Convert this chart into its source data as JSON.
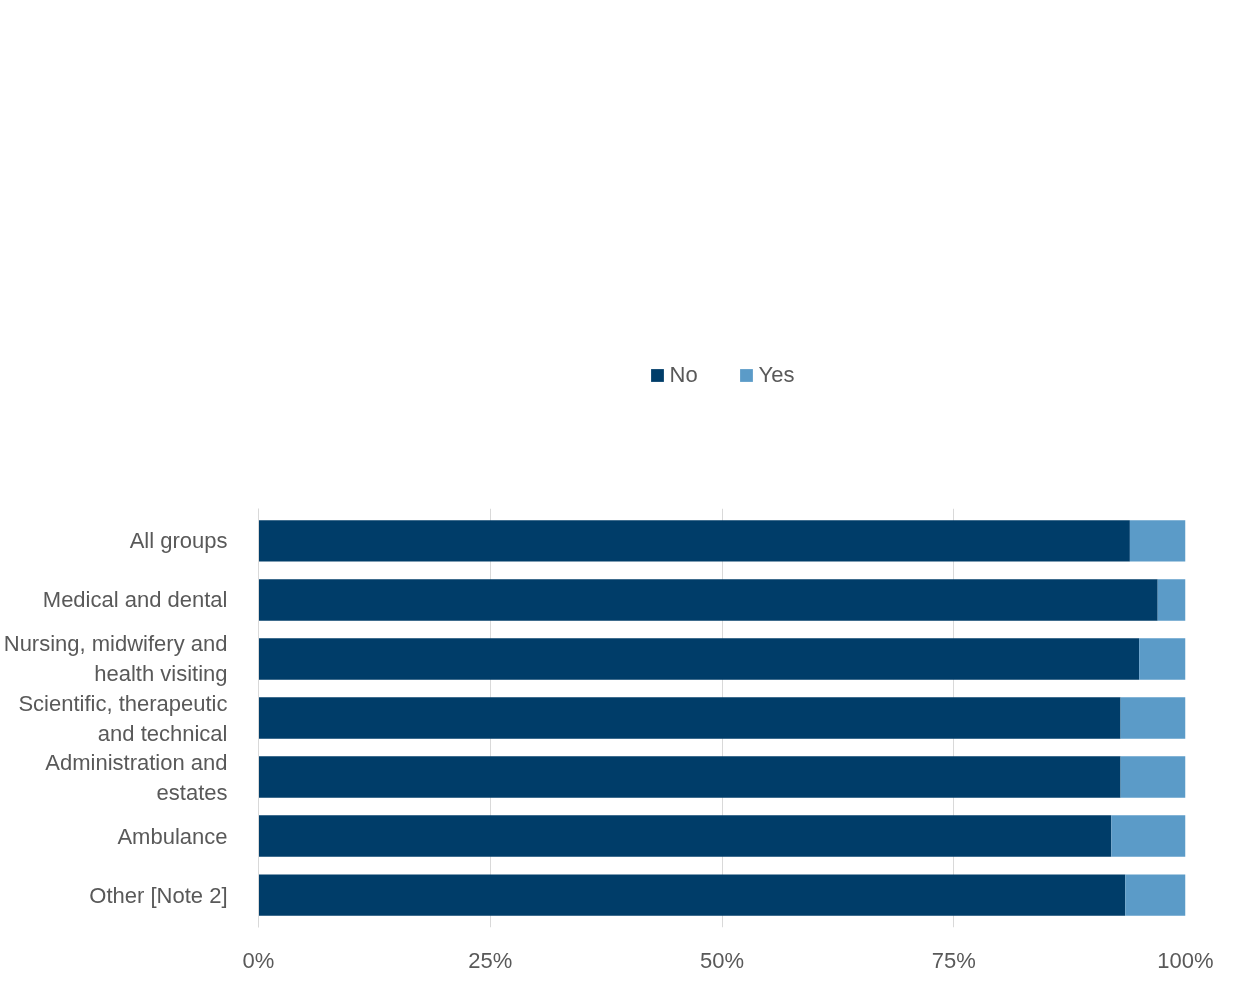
{
  "chart_data": {
    "type": "bar",
    "orientation": "horizontal",
    "stacked": true,
    "categories": [
      "All groups",
      "Medical and dental",
      "Nursing, midwifery and health visiting",
      "Scientific, therapeutic and technical",
      "Administration and estates",
      "Ambulance",
      "Other [Note 2]"
    ],
    "series": [
      {
        "name": "No",
        "color": "#003d69",
        "values": [
          94,
          97,
          95,
          93,
          93,
          92,
          93.5
        ]
      },
      {
        "name": "Yes",
        "color": "#5b9bc8",
        "values": [
          6,
          3,
          5,
          7,
          7,
          8,
          6.5
        ]
      }
    ],
    "xlim": [
      0,
      100
    ],
    "xticks": [
      {
        "value": 0,
        "label": "0%"
      },
      {
        "value": 25,
        "label": "25%"
      },
      {
        "value": 50,
        "label": "50%"
      },
      {
        "value": 75,
        "label": "75%"
      },
      {
        "value": 100,
        "label": "100%"
      }
    ],
    "grid": "x",
    "legend": "top"
  }
}
